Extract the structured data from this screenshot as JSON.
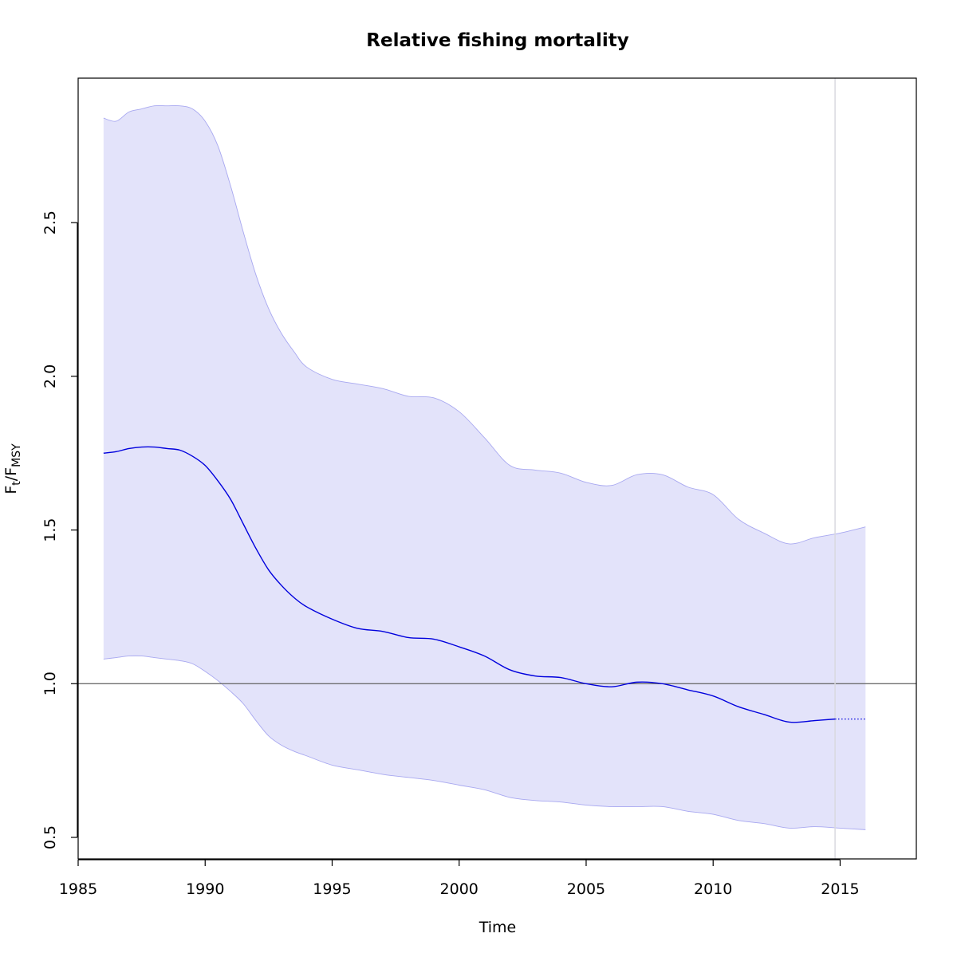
{
  "chart_data": {
    "type": "line",
    "title": "Relative fishing mortality",
    "xlabel": "Time",
    "ylabel": {
      "main_1": "F",
      "sub_1": "t",
      "sep": "/",
      "main_2": "F",
      "sub_2": "MSY"
    },
    "xlim": [
      1985,
      2018
    ],
    "ylim": [
      0.43,
      2.97
    ],
    "x_ticks": [
      1985,
      1990,
      1995,
      2000,
      2005,
      2010,
      2015
    ],
    "x_tick_labels": [
      "1985",
      "1990",
      "1995",
      "2000",
      "2005",
      "2010",
      "2015"
    ],
    "y_ticks": [
      0.5,
      1.0,
      1.5,
      2.0,
      2.5
    ],
    "y_tick_labels": [
      "0.5",
      "1.0",
      "1.5",
      "2.0",
      "2.5"
    ],
    "grid": false,
    "reference_line_y": 1.0,
    "vertical_line_x": 2014.8,
    "colors": {
      "line": "#0000dd",
      "band_fill": "#e3e3fa",
      "band_edge": "#a8a8f0",
      "reference_line": "#6e6e6e",
      "vertical_line": "#d9d9e0"
    },
    "series": [
      {
        "x": [
          1986,
          1986.5,
          1987,
          1987.5,
          1988,
          1988.5,
          1989,
          1989.5,
          1990,
          1990.5,
          1991,
          1991.5,
          1992,
          1992.5,
          1993,
          1993.5,
          1994,
          1995,
          1996,
          1997,
          1998,
          1999,
          2000,
          2001,
          2002,
          2003,
          2004,
          2005,
          2006,
          2007,
          2008,
          2009,
          2010,
          2011,
          2012,
          2013,
          2014,
          2014.8
        ],
        "values": [
          1.75,
          1.755,
          1.765,
          1.77,
          1.77,
          1.765,
          1.76,
          1.74,
          1.71,
          1.66,
          1.6,
          1.52,
          1.44,
          1.37,
          1.32,
          1.28,
          1.25,
          1.21,
          1.18,
          1.17,
          1.15,
          1.145,
          1.12,
          1.09,
          1.045,
          1.025,
          1.02,
          1.0,
          0.99,
          1.005,
          1.0,
          0.98,
          0.96,
          0.925,
          0.9,
          0.875,
          0.88,
          0.885
        ]
      },
      {
        "style": "dotted",
        "x": [
          2014.8,
          2016
        ],
        "values": [
          0.885,
          0.885
        ]
      }
    ],
    "band": {
      "x": [
        1986,
        1986.5,
        1987,
        1987.5,
        1988,
        1988.5,
        1989,
        1989.5,
        1990,
        1990.5,
        1991,
        1991.5,
        1992,
        1992.5,
        1993,
        1993.5,
        1994,
        1995,
        1996,
        1997,
        1998,
        1999,
        2000,
        2001,
        2002,
        2003,
        2004,
        2005,
        2006,
        2007,
        2008,
        2009,
        2010,
        2011,
        2012,
        2013,
        2014,
        2015,
        2016
      ],
      "upper": [
        2.84,
        2.83,
        2.86,
        2.87,
        2.88,
        2.88,
        2.88,
        2.87,
        2.83,
        2.75,
        2.62,
        2.47,
        2.33,
        2.22,
        2.14,
        2.08,
        2.03,
        1.99,
        1.975,
        1.96,
        1.935,
        1.93,
        1.885,
        1.8,
        1.71,
        1.695,
        1.685,
        1.655,
        1.645,
        1.68,
        1.68,
        1.64,
        1.615,
        1.535,
        1.49,
        1.455,
        1.475,
        1.49,
        1.51
      ],
      "lower": [
        1.08,
        1.085,
        1.09,
        1.09,
        1.085,
        1.08,
        1.075,
        1.065,
        1.04,
        1.01,
        0.975,
        0.935,
        0.88,
        0.83,
        0.8,
        0.78,
        0.765,
        0.735,
        0.72,
        0.705,
        0.695,
        0.685,
        0.67,
        0.655,
        0.63,
        0.62,
        0.615,
        0.605,
        0.6,
        0.6,
        0.6,
        0.585,
        0.575,
        0.555,
        0.545,
        0.53,
        0.535,
        0.53,
        0.525
      ]
    }
  }
}
